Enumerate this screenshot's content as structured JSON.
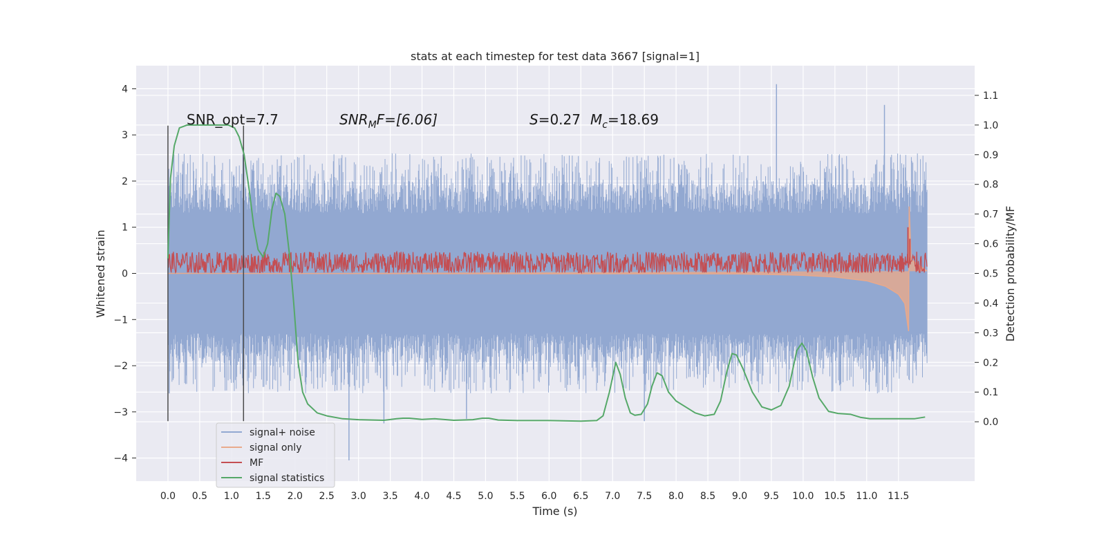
{
  "chart_data": {
    "type": "line",
    "title": "stats at each timestep for test data 3667 [signal=1]",
    "xlabel": "Time (s)",
    "ylabel": "Whitened strain",
    "ylabel_right": "Detection probability/MF",
    "xlim": [
      -0.5,
      12.7
    ],
    "ylim": [
      -4.5,
      4.5
    ],
    "ylim_right": [
      -0.2,
      1.2
    ],
    "x_ticks": [
      "0.0",
      "0.5",
      "1.0",
      "1.5",
      "2.0",
      "2.5",
      "3.0",
      "3.5",
      "4.0",
      "4.5",
      "5.0",
      "5.5",
      "6.0",
      "6.5",
      "7.0",
      "7.5",
      "8.0",
      "8.5",
      "9.0",
      "9.5",
      "10.0",
      "10.5",
      "11.0",
      "11.5"
    ],
    "y_ticks": [
      "4",
      "3",
      "2",
      "1",
      "0",
      "−1",
      "−2",
      "−3",
      "−4"
    ],
    "y_right_ticks": [
      "1.1",
      "1.0",
      "0.9",
      "0.8",
      "0.7",
      "0.6",
      "0.5",
      "0.4",
      "0.3",
      "0.2",
      "0.1",
      "0.0"
    ],
    "grid": true,
    "legend_position": "lower-left",
    "annotations": {
      "snr_opt": "SNR_opt=7.7",
      "snr_mf_label": "SNR",
      "snr_mf_sub": "M",
      "snr_mf_rest": "F=[6.06]",
      "s_label": "S",
      "s_value": "=0.27",
      "mc_label": "M",
      "mc_sub": "c",
      "mc_value": "=18.69"
    },
    "vertical_markers": [
      0.0,
      1.19
    ],
    "series": [
      {
        "name": "signal+ noise",
        "color": "#92a8d1",
        "axis": "left",
        "kind": "noise",
        "x_range": [
          0.0,
          11.95
        ],
        "band": [
          -1.3,
          1.3
        ],
        "spike_range": [
          -2.6,
          2.6
        ],
        "extremes": [
          [
            9.58,
            4.1
          ],
          [
            11.28,
            3.65
          ],
          [
            2.85,
            -4.05
          ],
          [
            0.02,
            -2.6
          ],
          [
            3.4,
            -3.25
          ],
          [
            4.7,
            -3.15
          ],
          [
            7.5,
            -3.2
          ]
        ]
      },
      {
        "name": "signal only",
        "color": "#e9a98b",
        "axis": "left",
        "kind": "chirp",
        "points": [
          [
            0.0,
            0.0
          ],
          [
            9.0,
            -0.01
          ],
          [
            10.0,
            -0.04
          ],
          [
            10.5,
            -0.08
          ],
          [
            11.0,
            -0.16
          ],
          [
            11.3,
            -0.28
          ],
          [
            11.5,
            -0.45
          ],
          [
            11.6,
            -0.65
          ],
          [
            11.66,
            -1.25
          ],
          [
            11.67,
            1.45
          ],
          [
            11.7,
            0.3
          ],
          [
            11.95,
            0.05
          ]
        ]
      },
      {
        "name": "MF",
        "color": "#c44e52",
        "axis": "left",
        "kind": "mf",
        "x_range": [
          0.0,
          11.95
        ],
        "base": 0.22,
        "amplitude": 0.25,
        "peaks": [
          [
            11.65,
            1.0
          ],
          [
            11.68,
            0.75
          ]
        ]
      },
      {
        "name": "signal statistics",
        "color": "#55a868",
        "axis": "right",
        "kind": "line",
        "points": [
          [
            0.0,
            0.55
          ],
          [
            0.04,
            0.82
          ],
          [
            0.1,
            0.93
          ],
          [
            0.18,
            0.99
          ],
          [
            0.3,
            1.0
          ],
          [
            0.5,
            1.0
          ],
          [
            0.8,
            1.0
          ],
          [
            0.95,
            1.0
          ],
          [
            1.05,
            0.99
          ],
          [
            1.12,
            0.96
          ],
          [
            1.2,
            0.9
          ],
          [
            1.28,
            0.78
          ],
          [
            1.35,
            0.66
          ],
          [
            1.42,
            0.58
          ],
          [
            1.5,
            0.555
          ],
          [
            1.57,
            0.6
          ],
          [
            1.64,
            0.72
          ],
          [
            1.7,
            0.77
          ],
          [
            1.76,
            0.76
          ],
          [
            1.84,
            0.7
          ],
          [
            1.92,
            0.55
          ],
          [
            1.98,
            0.4
          ],
          [
            2.05,
            0.2
          ],
          [
            2.12,
            0.1
          ],
          [
            2.2,
            0.06
          ],
          [
            2.35,
            0.03
          ],
          [
            2.5,
            0.02
          ],
          [
            2.75,
            0.01
          ],
          [
            3.0,
            0.007
          ],
          [
            3.4,
            0.005
          ],
          [
            3.6,
            0.01
          ],
          [
            3.7,
            0.012
          ],
          [
            3.8,
            0.012
          ],
          [
            4.0,
            0.008
          ],
          [
            4.2,
            0.01
          ],
          [
            4.5,
            0.005
          ],
          [
            4.8,
            0.007
          ],
          [
            4.95,
            0.012
          ],
          [
            5.05,
            0.012
          ],
          [
            5.2,
            0.006
          ],
          [
            5.5,
            0.004
          ],
          [
            6.0,
            0.004
          ],
          [
            6.5,
            0.002
          ],
          [
            6.75,
            0.004
          ],
          [
            6.85,
            0.02
          ],
          [
            6.95,
            0.1
          ],
          [
            7.05,
            0.2
          ],
          [
            7.12,
            0.16
          ],
          [
            7.2,
            0.08
          ],
          [
            7.28,
            0.03
          ],
          [
            7.35,
            0.022
          ],
          [
            7.45,
            0.025
          ],
          [
            7.55,
            0.06
          ],
          [
            7.62,
            0.12
          ],
          [
            7.7,
            0.165
          ],
          [
            7.78,
            0.155
          ],
          [
            7.88,
            0.1
          ],
          [
            8.0,
            0.07
          ],
          [
            8.15,
            0.05
          ],
          [
            8.3,
            0.03
          ],
          [
            8.45,
            0.02
          ],
          [
            8.6,
            0.025
          ],
          [
            8.7,
            0.07
          ],
          [
            8.8,
            0.17
          ],
          [
            8.88,
            0.23
          ],
          [
            8.95,
            0.225
          ],
          [
            9.05,
            0.18
          ],
          [
            9.2,
            0.1
          ],
          [
            9.35,
            0.05
          ],
          [
            9.5,
            0.04
          ],
          [
            9.65,
            0.055
          ],
          [
            9.78,
            0.12
          ],
          [
            9.9,
            0.24
          ],
          [
            9.98,
            0.265
          ],
          [
            10.05,
            0.24
          ],
          [
            10.15,
            0.15
          ],
          [
            10.25,
            0.08
          ],
          [
            10.4,
            0.035
          ],
          [
            10.55,
            0.028
          ],
          [
            10.75,
            0.025
          ],
          [
            10.9,
            0.015
          ],
          [
            11.05,
            0.01
          ],
          [
            11.3,
            0.01
          ],
          [
            11.6,
            0.01
          ],
          [
            11.75,
            0.01
          ],
          [
            11.92,
            0.016
          ]
        ]
      }
    ]
  }
}
